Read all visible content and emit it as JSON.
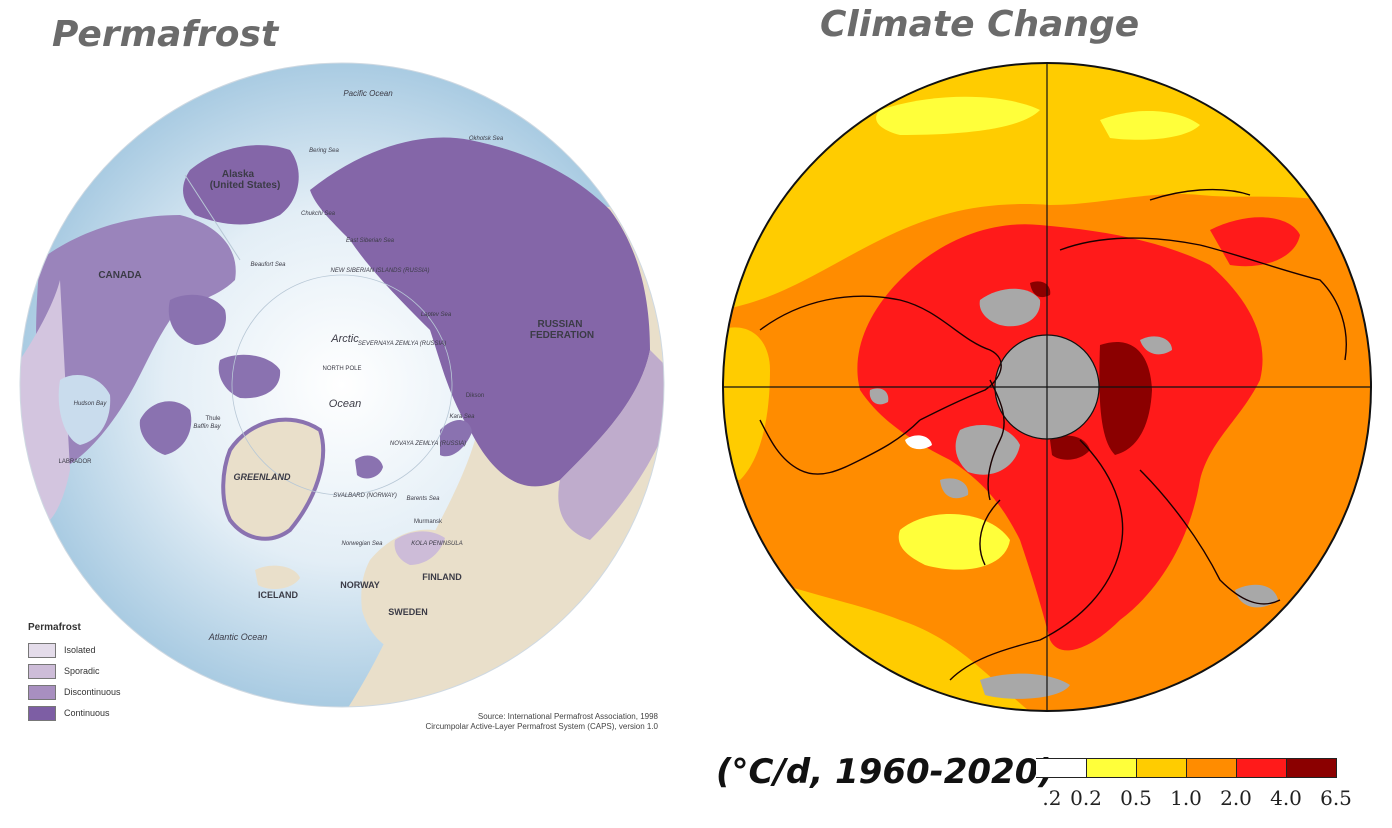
{
  "left_panel": {
    "title": "Permafrost",
    "labels": {
      "pacific_ocean": "Pacific Ocean",
      "alaska": "Alaska",
      "alaska_sub": "(United States)",
      "canada": "CANADA",
      "arctic": "Arctic",
      "ocean": "Ocean",
      "north_pole": "NORTH POLE",
      "russian_federation_1": "RUSSIAN",
      "russian_federation_2": "FEDERATION",
      "greenland": "GREENLAND",
      "iceland": "ICELAND",
      "norway": "NORWAY",
      "sweden": "SWEDEN",
      "finland": "FINLAND",
      "atlantic_ocean": "Atlantic Ocean",
      "hudson_bay": "Hudson Bay",
      "labrador": "LABRADOR",
      "baffin_bay": "Baffin Bay",
      "beaufort_sea": "Beaufort Sea",
      "chukchi_sea": "Chukchi Sea",
      "bering_sea": "Bering Sea",
      "east_siberian_sea": "East Siberian Sea",
      "laptev_sea": "Laptev Sea",
      "kara_sea": "Kara Sea",
      "barents_sea": "Barents Sea",
      "norwegian_sea": "Norwegian Sea",
      "okhotsk_sea": "Okhotsk Sea",
      "svalbard": "SVALBARD (NORWAY)",
      "novaya_zemlya": "NOVAYA ZEMLYA (RUSSIA)",
      "severnaya_zemlya": "SEVERNAYA ZEMLYA (RUSSIA)",
      "new_siberian": "NEW SIBERIAN ISLANDS (RUSSIA)",
      "kola": "KOLA PENINSULA",
      "murmansk": "Murmansk",
      "thule": "Thule",
      "dikson": "Dikson"
    },
    "legend": {
      "title": "Permafrost",
      "items": [
        {
          "label": "Isolated",
          "color": "#e4dcea"
        },
        {
          "label": "Sporadic",
          "color": "#cdbcd8"
        },
        {
          "label": "Discontinuous",
          "color": "#a88fc0"
        },
        {
          "label": "Continuous",
          "color": "#7d5ea4"
        }
      ]
    },
    "source_line1": "Source: International Permafrost Association, 1998",
    "source_line2": "Circumpolar Active-Layer Permafrost System (CAPS), version 1.0"
  },
  "right_panel": {
    "title": "Climate Change",
    "units": "(°C/d, 1960-2020)",
    "colorbar": {
      "bins": [
        {
          "color": "#ffffff"
        },
        {
          "color": "#ffff3a"
        },
        {
          "color": "#ffcc00"
        },
        {
          "color": "#ff8c00"
        },
        {
          "color": "#ff1a1a"
        },
        {
          "color": "#8b0000"
        }
      ],
      "ticks": [
        "0.2",
        "0.2",
        "0.5",
        "1.0",
        "2.0",
        "4.0",
        "6.5"
      ],
      "missing_color": "#a8a8a8"
    }
  }
}
